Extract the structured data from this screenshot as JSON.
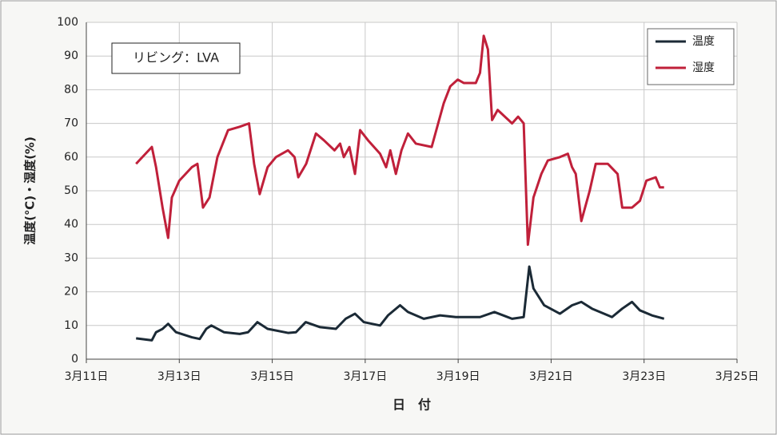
{
  "chart_data": {
    "type": "line",
    "annotation": "リビング：LVA",
    "ylabel": "温度(℃)・湿度(%)",
    "xlabel": "日　付",
    "xlim": [
      11,
      25
    ],
    "xticks": [
      {
        "value": 11,
        "label": "3月11日"
      },
      {
        "value": 13,
        "label": "3月13日"
      },
      {
        "value": 15,
        "label": "3月15日"
      },
      {
        "value": 17,
        "label": "3月17日"
      },
      {
        "value": 19,
        "label": "3月19日"
      },
      {
        "value": 21,
        "label": "3月21日"
      },
      {
        "value": 23,
        "label": "3月23日"
      },
      {
        "value": 25,
        "label": "3月25日"
      }
    ],
    "ylim": [
      0,
      100
    ],
    "yticks": [
      0,
      10,
      20,
      30,
      40,
      50,
      60,
      70,
      80,
      90,
      100
    ],
    "grid": true,
    "legend": "upper right",
    "series": [
      {
        "name": "温度",
        "color": "#1b2a36",
        "x": [
          12.07,
          12.41,
          12.5,
          12.64,
          12.76,
          12.93,
          13.27,
          13.44,
          13.58,
          13.69,
          13.96,
          14.3,
          14.48,
          14.68,
          14.9,
          15.34,
          15.51,
          15.72,
          16.03,
          16.37,
          16.58,
          16.78,
          16.97,
          17.32,
          17.49,
          17.75,
          17.92,
          18.26,
          18.61,
          18.95,
          19.47,
          19.78,
          20.16,
          20.41,
          20.53,
          20.62,
          20.85,
          21.19,
          21.45,
          21.65,
          21.88,
          22.31,
          22.53,
          22.74,
          22.91,
          23.17,
          23.43
        ],
        "values": [
          6.2,
          5.6,
          8,
          9,
          10.5,
          8,
          6.5,
          6,
          9,
          10,
          8,
          7.5,
          8,
          11,
          9,
          7.8,
          8,
          11,
          9.5,
          9,
          12,
          13.5,
          11,
          10,
          13,
          16,
          14,
          12,
          13,
          12.5,
          12.5,
          14,
          12,
          12.5,
          27.5,
          21,
          16,
          13.5,
          16,
          17,
          15,
          12.5,
          15,
          17,
          14.5,
          13,
          12
        ]
      },
      {
        "name": "湿度",
        "color": "#c0203a",
        "x": [
          12.07,
          12.41,
          12.5,
          12.64,
          12.76,
          12.84,
          13.0,
          13.27,
          13.39,
          13.51,
          13.65,
          13.82,
          14.05,
          14.3,
          14.5,
          14.61,
          14.73,
          14.9,
          15.08,
          15.34,
          15.48,
          15.56,
          15.73,
          15.94,
          16.11,
          16.34,
          16.46,
          16.54,
          16.66,
          16.78,
          16.89,
          17.06,
          17.32,
          17.45,
          17.54,
          17.66,
          17.78,
          17.92,
          18.09,
          18.43,
          18.69,
          18.83,
          18.99,
          19.12,
          19.38,
          19.47,
          19.55,
          19.64,
          19.73,
          19.85,
          20.16,
          20.29,
          20.41,
          20.5,
          20.62,
          20.79,
          20.93,
          21.19,
          21.36,
          21.45,
          21.53,
          21.65,
          21.83,
          21.96,
          22.22,
          22.43,
          22.53,
          22.74,
          22.91,
          23.05,
          23.25,
          23.34,
          23.43
        ],
        "values": [
          58,
          63,
          57,
          45,
          36,
          48,
          53,
          57,
          58,
          45,
          48,
          60,
          68,
          69,
          70,
          58,
          49,
          57,
          60,
          62,
          60,
          54,
          58,
          67,
          65,
          62,
          64,
          60,
          63,
          55,
          68,
          65,
          61,
          57,
          62,
          55,
          62,
          67,
          64,
          63,
          76,
          81,
          83,
          82,
          82,
          85,
          96,
          92,
          71,
          74,
          70,
          72,
          70,
          34,
          48,
          55,
          59,
          60,
          61,
          57,
          55,
          41,
          50,
          58,
          58,
          55,
          45,
          45,
          47,
          53,
          54,
          51,
          51
        ]
      }
    ]
  }
}
